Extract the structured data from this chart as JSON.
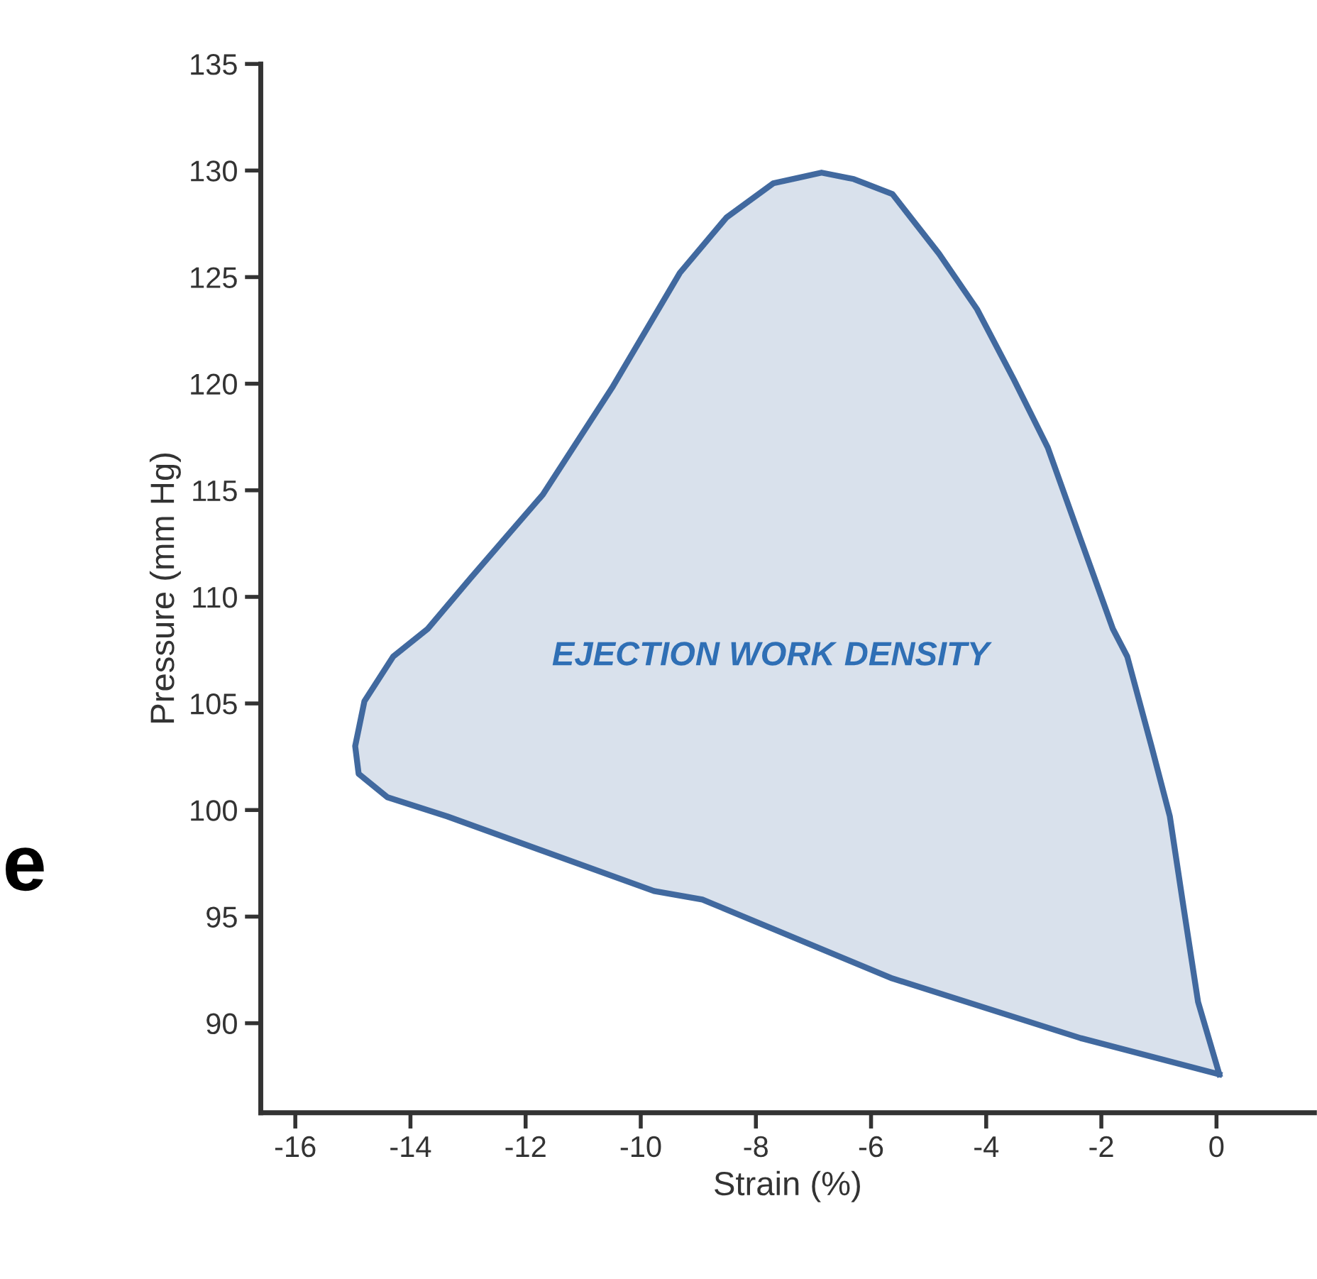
{
  "chart_data": {
    "type": "area",
    "xlabel": "Strain (%)",
    "ylabel": "Pressure (mm Hg)",
    "series": [
      {
        "color": "#41699f",
        "x": [
          0.05,
          -0.32,
          -0.57,
          -0.81,
          -1.13,
          -1.55,
          -1.8,
          -2.36,
          -2.93,
          -3.52,
          -4.16,
          -4.82,
          -5.63,
          -6.3,
          -6.86,
          -7.7,
          -8.51,
          -9.32,
          -10.5,
          -11.7,
          -12.95,
          -13.7,
          -14.3,
          -14.8,
          -14.96,
          -14.9,
          -14.4,
          -13.36,
          -9.77,
          -8.93,
          -5.63,
          -2.36,
          0.05
        ],
        "values": [
          87.6,
          91.0,
          95.4,
          99.7,
          103.0,
          107.2,
          108.5,
          112.7,
          117.0,
          120.2,
          123.5,
          126.1,
          128.9,
          129.6,
          129.9,
          129.4,
          127.8,
          125.2,
          119.8,
          114.8,
          110.9,
          108.5,
          107.2,
          105.1,
          103.0,
          101.7,
          100.6,
          99.7,
          96.2,
          95.8,
          92.1,
          89.3,
          87.6
        ]
      }
    ],
    "annotations": [
      "EJECTION WORK DENSITY",
      "e"
    ],
    "xlim": [
      -16.6,
      1.7
    ],
    "ylim": [
      85.8,
      135
    ],
    "xticks": [
      -16,
      -14,
      -12,
      -10,
      -8,
      -6,
      -4,
      -2,
      0
    ],
    "yticks": [
      90,
      95,
      100,
      105,
      110,
      115,
      120,
      125,
      130,
      135
    ],
    "grid": false,
    "legend": false
  }
}
